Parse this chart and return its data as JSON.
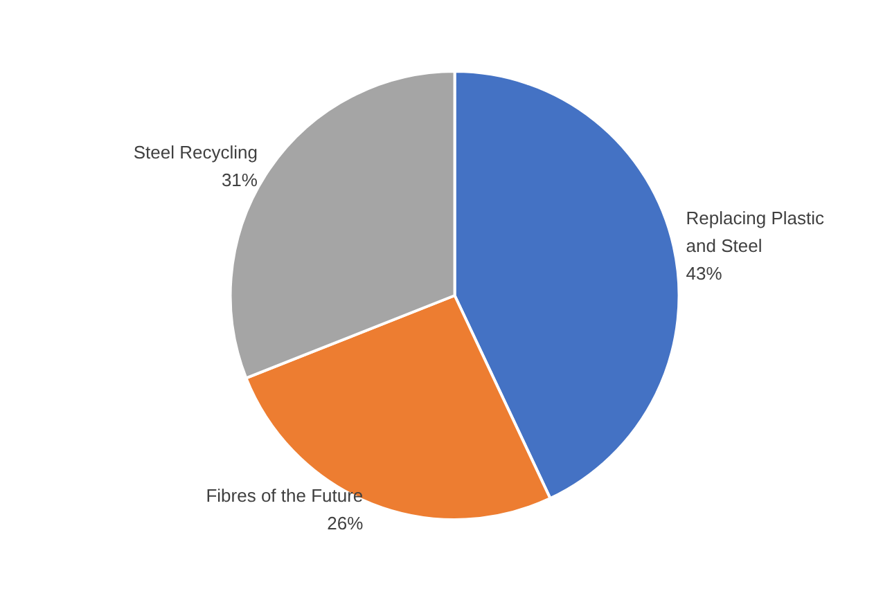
{
  "chart_data": {
    "type": "pie",
    "categories": [
      "Replacing Plastic and Steel",
      "Fibres of the Future",
      "Steel Recycling"
    ],
    "values": [
      43,
      26,
      31
    ],
    "colors": [
      "#4472c4",
      "#ed7d31",
      "#a5a5a5"
    ],
    "value_labels": [
      "43%",
      "26%",
      "31%"
    ],
    "legend": false
  }
}
